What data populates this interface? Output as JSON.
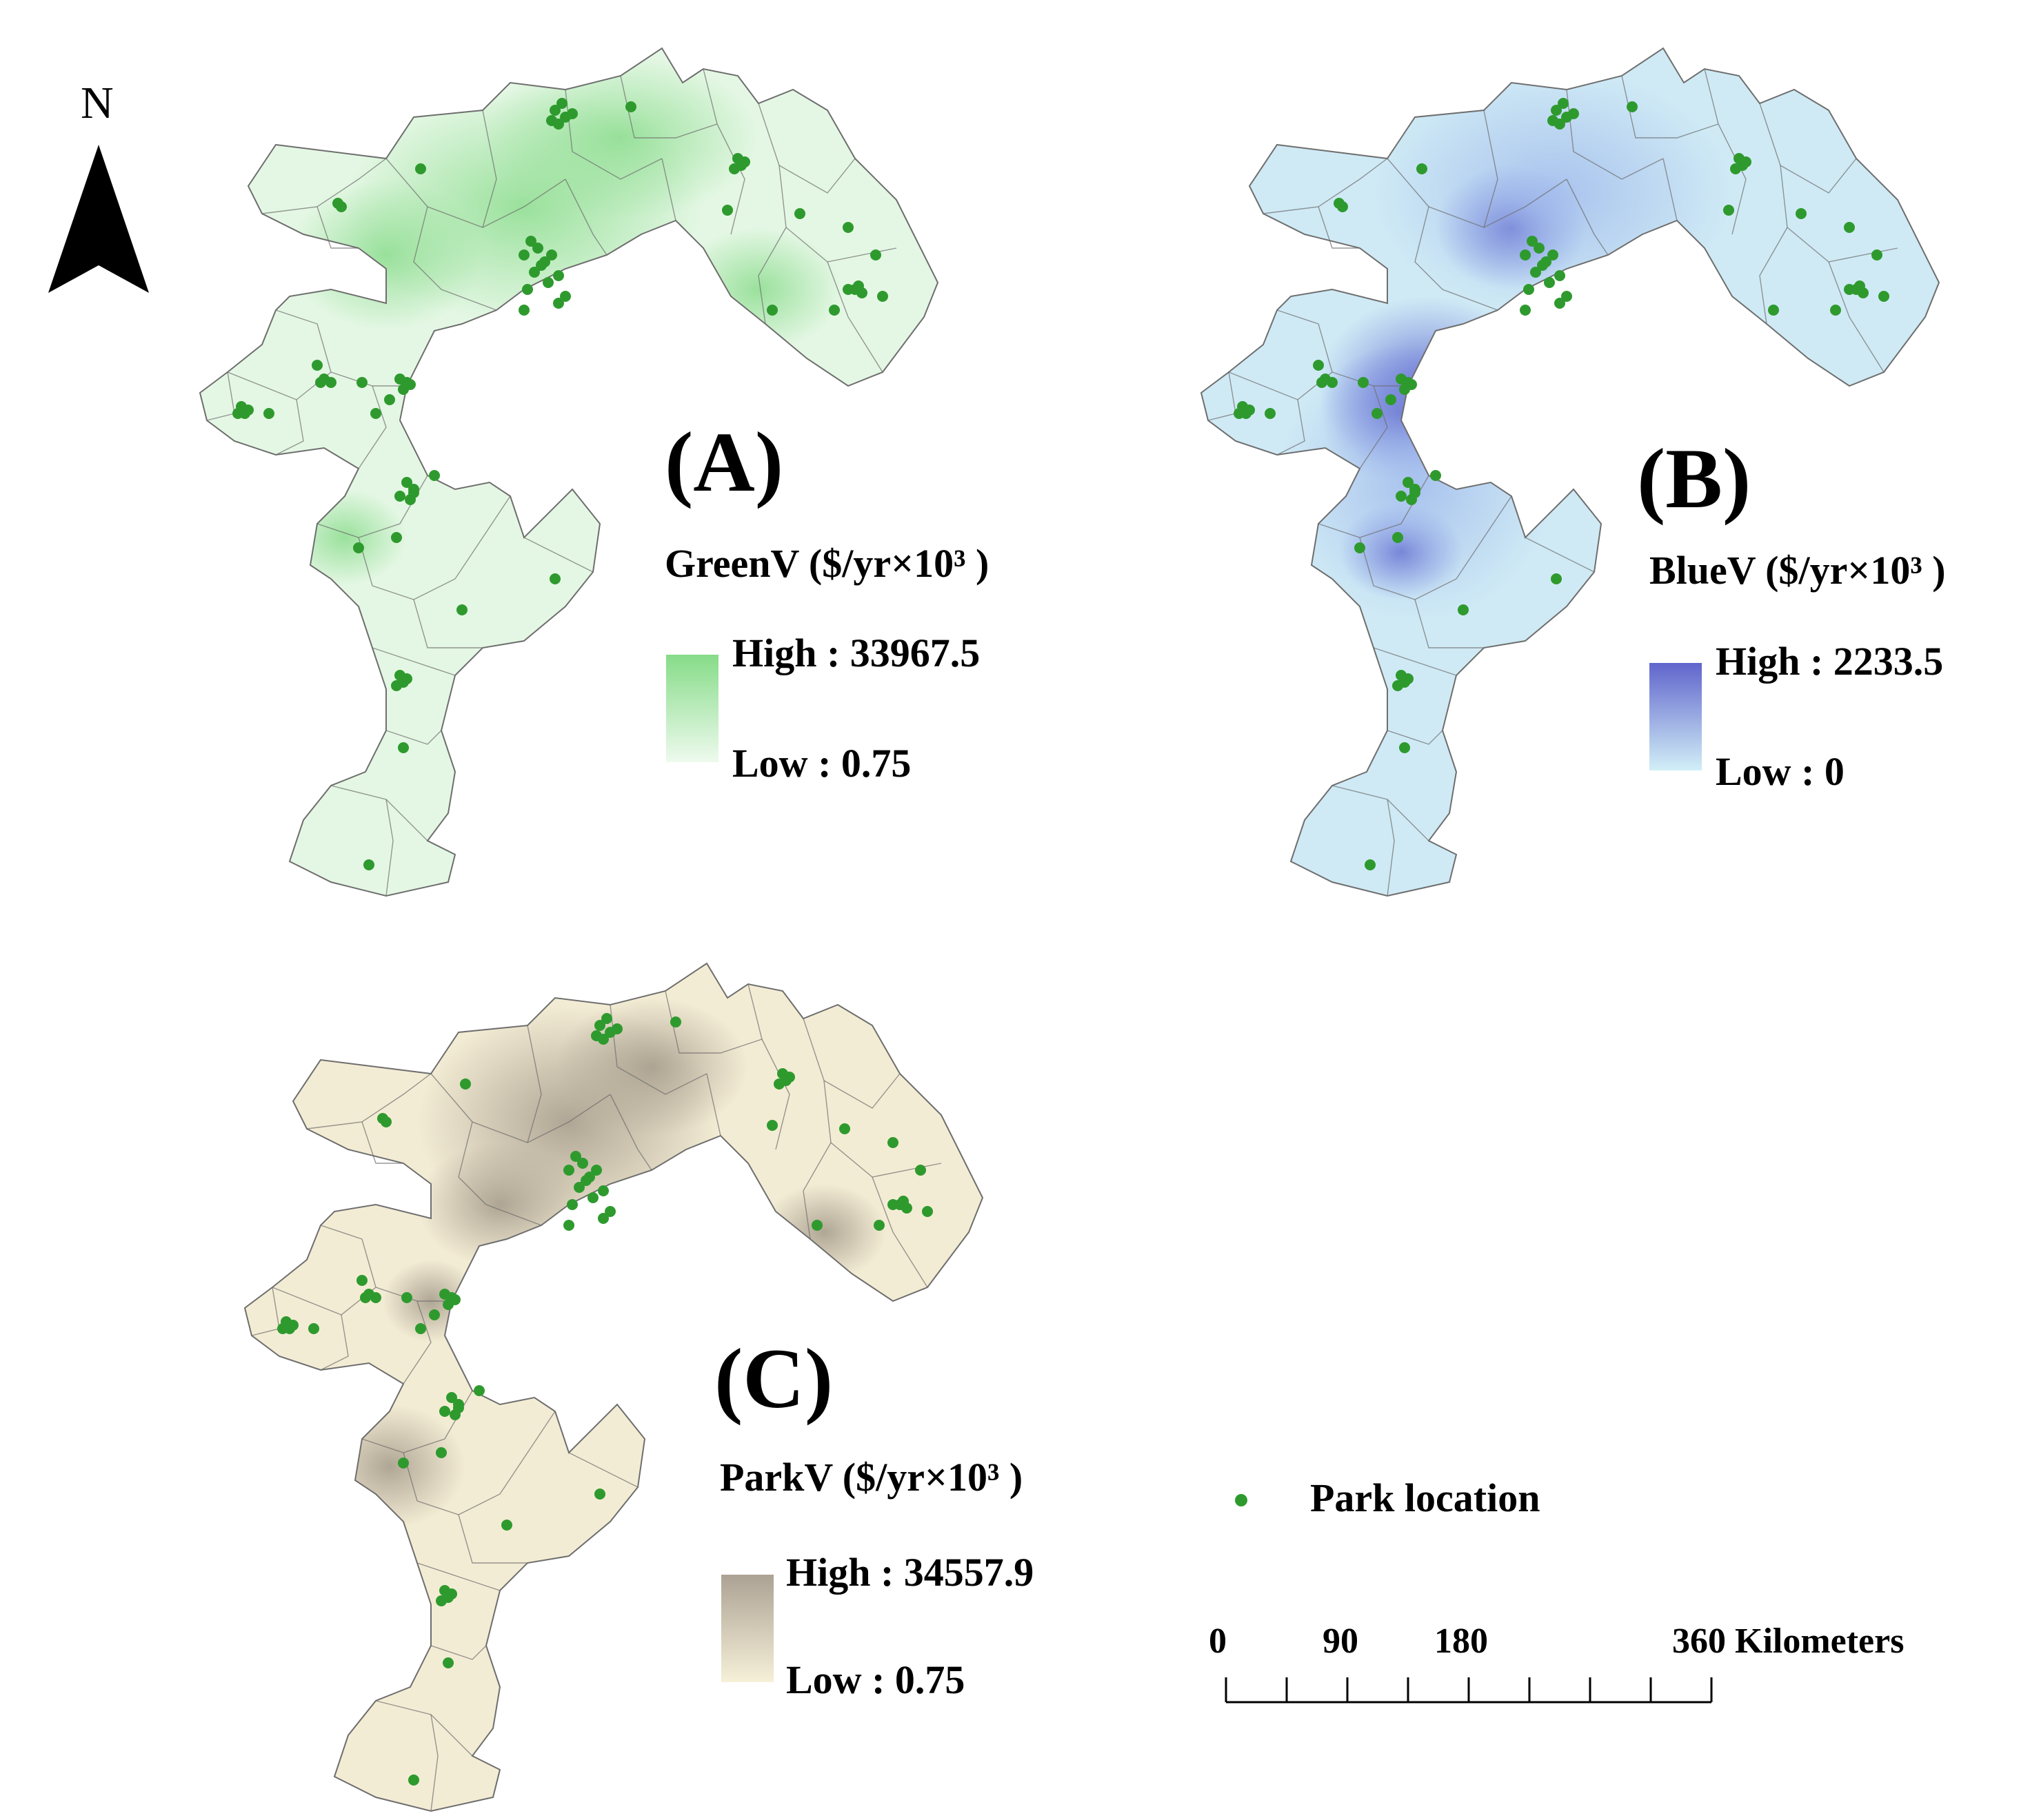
{
  "north_arrow": {
    "letter": "N"
  },
  "panels": [
    {
      "id": "A",
      "label": "(A)",
      "legend_title": "GreenV ($/yr×10³ )",
      "high_label": "High : 33967.5",
      "low_label": "Low : 0.75",
      "high_value": 33967.5,
      "low_value": 0.75,
      "colors": {
        "low": "#eefaee",
        "base": "#e4f7e4",
        "high": "#8ddd8f",
        "stroke": "#6e6e6e"
      }
    },
    {
      "id": "B",
      "label": "(B)",
      "legend_title": "BlueV ($/yr×10³ )",
      "high_label": "High : 2233.5",
      "low_label": "Low : 0",
      "high_value": 2233.5,
      "low_value": 0,
      "colors": {
        "low": "#d2eff7",
        "base": "#cfeaf5",
        "high": "#6a6ed0",
        "stroke": "#6e6e6e"
      }
    },
    {
      "id": "C",
      "label": "(C)",
      "legend_title": "ParkV ($/yr×10³ )",
      "high_label": "High : 34557.9",
      "low_label": "Low : 0.75",
      "high_value": 34557.9,
      "low_value": 0.75,
      "colors": {
        "low": "#f6f0d8",
        "base": "#f3ecd4",
        "high": "#a89e8e",
        "stroke": "#6e6e6e"
      }
    }
  ],
  "park_legend": {
    "label": "Park location",
    "color": "#2e9a2e"
  },
  "scale_bar": {
    "ticks": [
      "0",
      "90",
      "180",
      "360 Kilometers"
    ],
    "tick_values": [
      0,
      90,
      180,
      360
    ],
    "unit": "Kilometers",
    "subdivisions": 8
  }
}
